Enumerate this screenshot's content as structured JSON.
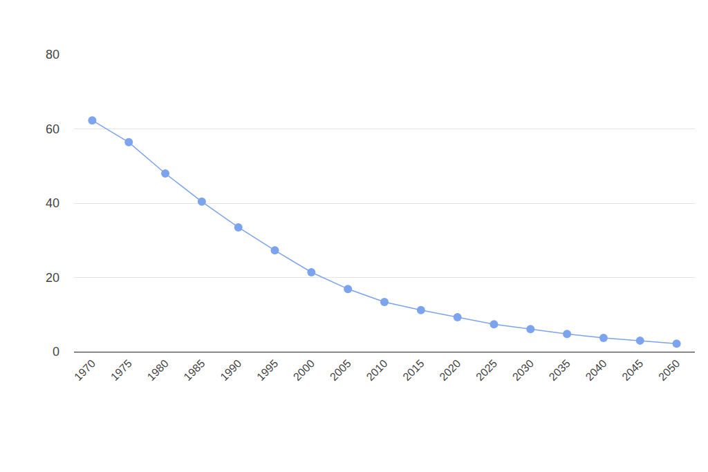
{
  "chart_data": {
    "type": "line",
    "categories": [
      "1970",
      "1975",
      "1980",
      "1985",
      "1990",
      "1995",
      "2000",
      "2005",
      "2010",
      "2015",
      "2020",
      "2025",
      "2030",
      "2035",
      "2040",
      "2045",
      "2050"
    ],
    "values": [
      62.3,
      56.4,
      48.0,
      40.4,
      33.5,
      27.3,
      21.4,
      16.9,
      13.4,
      11.2,
      9.3,
      7.4,
      6.1,
      4.8,
      3.7,
      3.0,
      2.2
    ],
    "color": "#7ba3ee",
    "marker": "circle",
    "ylim": [
      0,
      80
    ],
    "yticks": [
      0,
      20,
      40,
      60,
      80
    ],
    "grid": true
  }
}
